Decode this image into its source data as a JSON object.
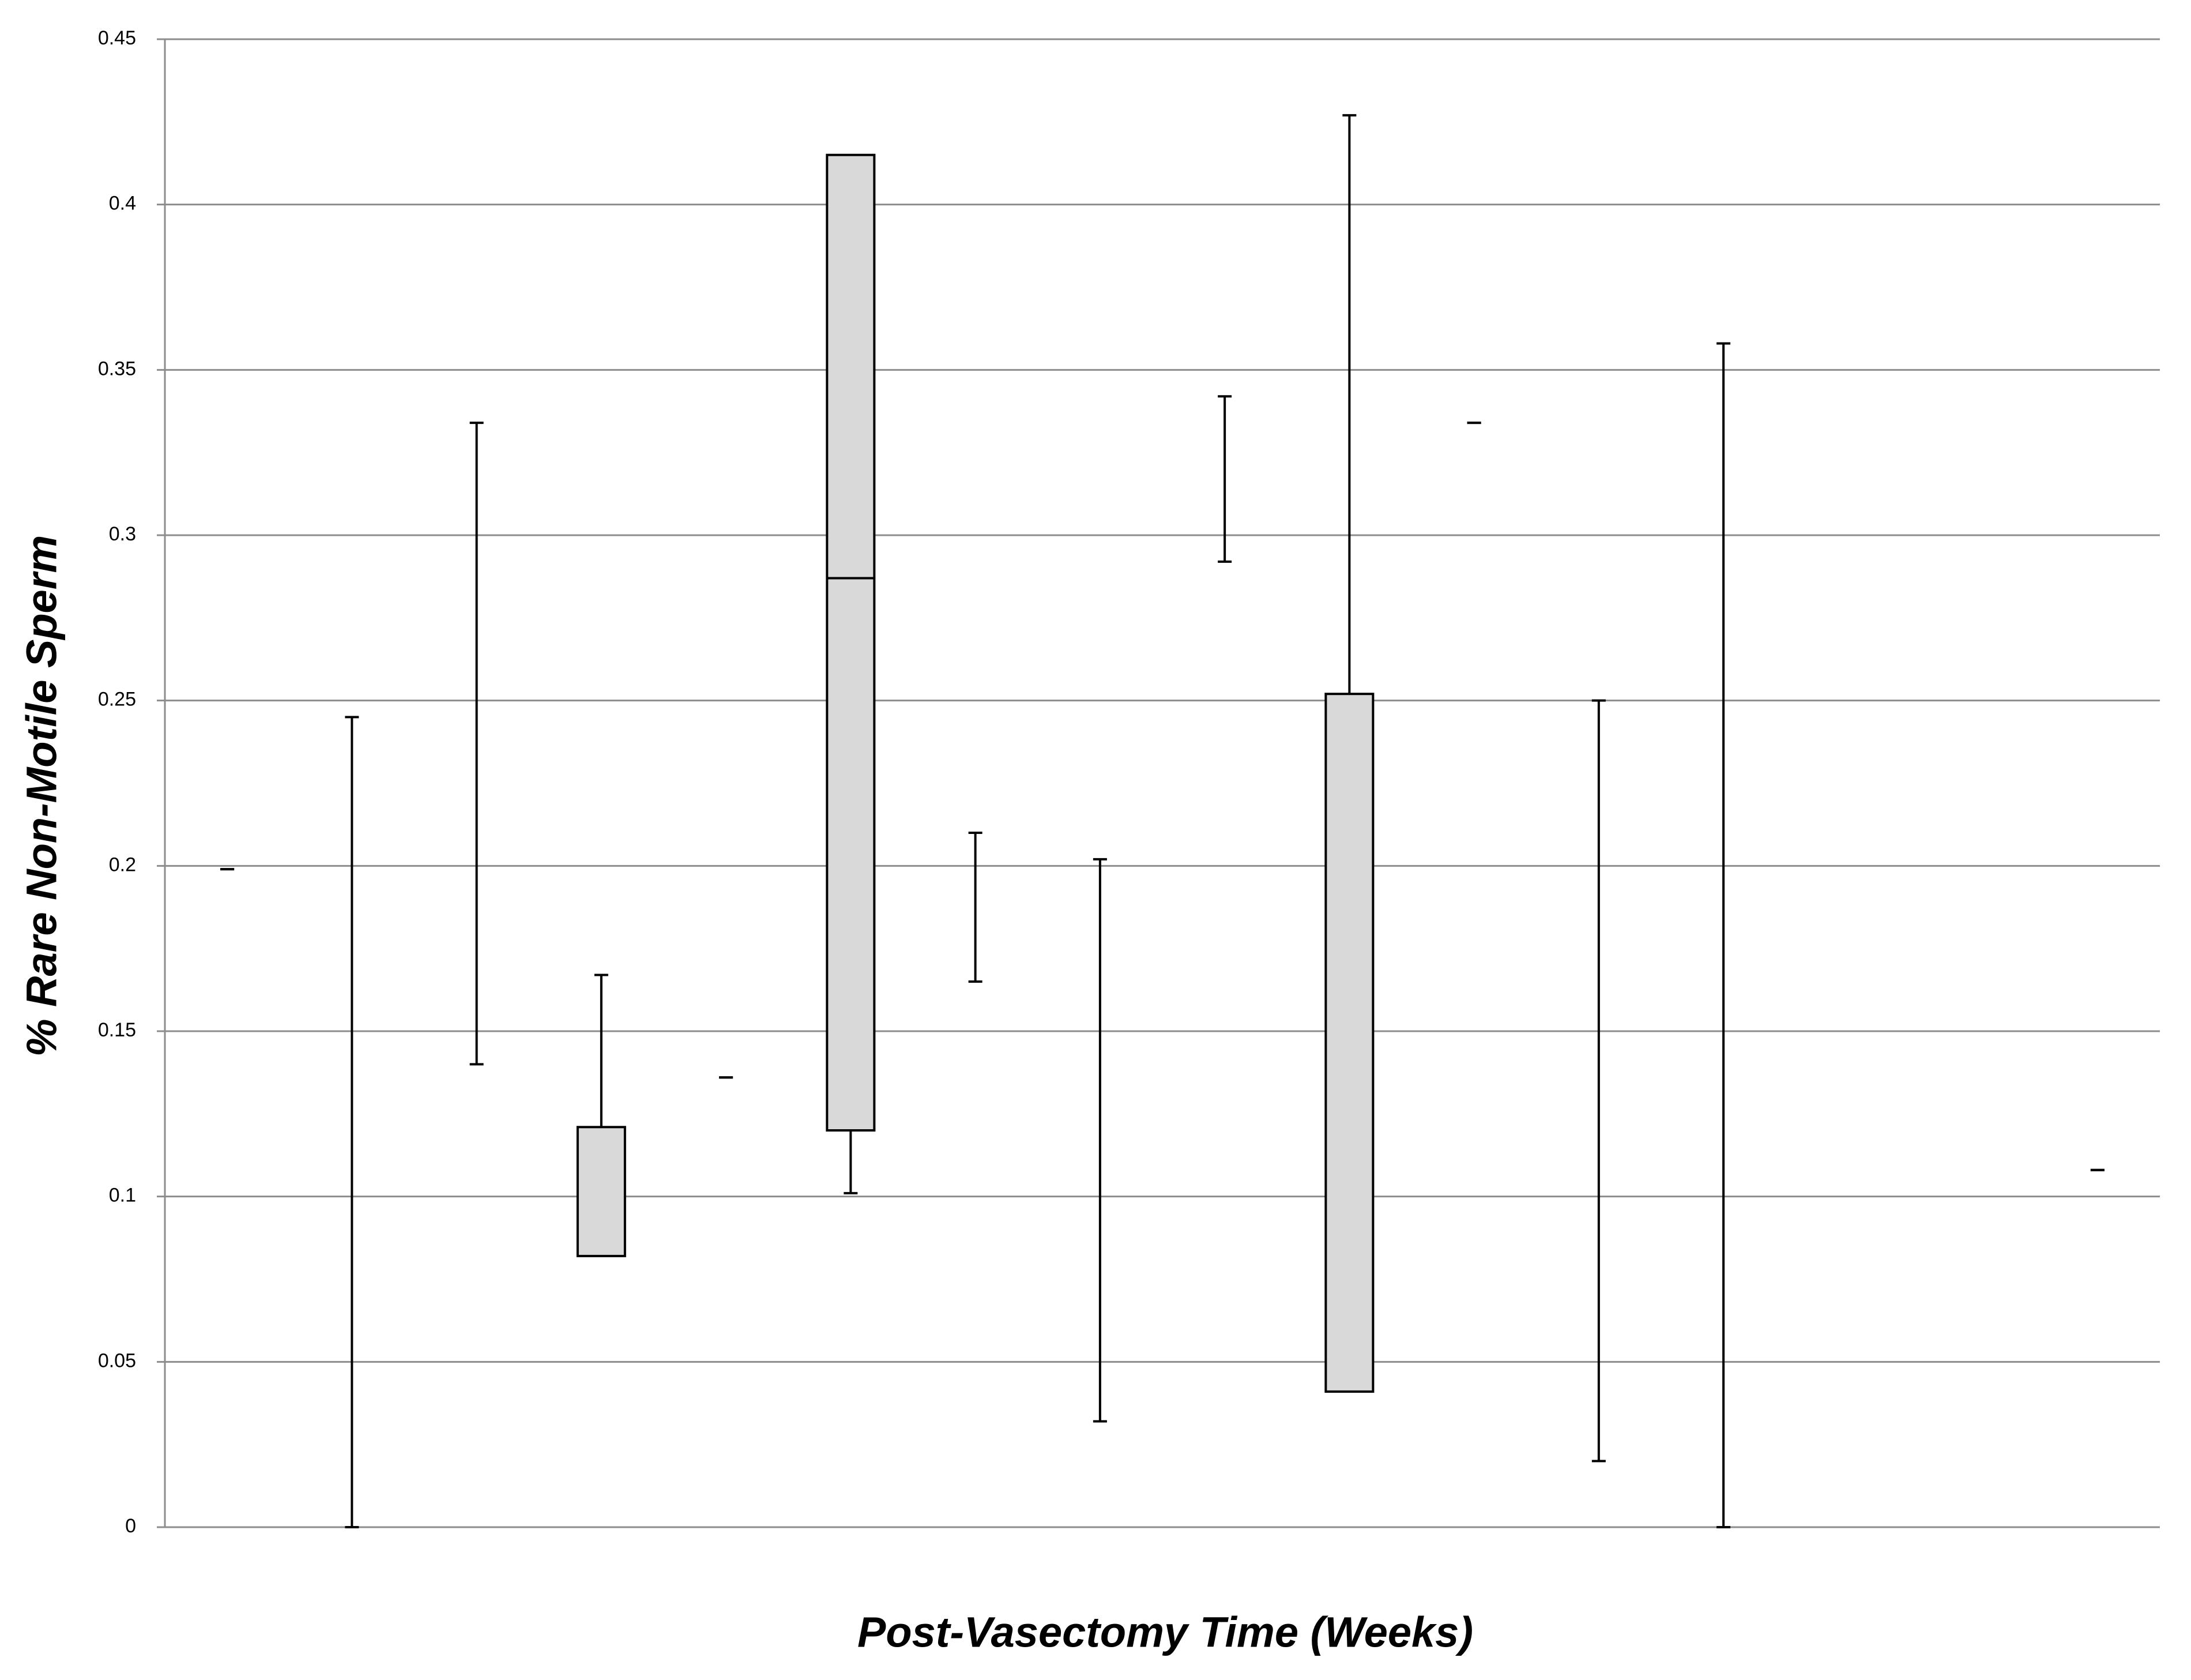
{
  "chart_data": {
    "type": "box",
    "x_label": "Post-Vasectomy Time (Weeks)",
    "y_label": "% Rare Non-Motile Sperm",
    "categories": [
      null,
      null,
      null,
      null,
      null,
      null,
      null,
      null,
      null,
      null,
      null,
      null,
      null,
      null,
      null,
      null
    ],
    "min": [
      0.199,
      0,
      0.14,
      null,
      0.136,
      0.101,
      0.165,
      0.032,
      0.292,
      null,
      0.334,
      0.02,
      0,
      null,
      null,
      0.108
    ],
    "q1": [
      null,
      null,
      null,
      0.082,
      null,
      0.12,
      null,
      null,
      null,
      0.041,
      null,
      null,
      null,
      null,
      null,
      null
    ],
    "median": [
      null,
      null,
      null,
      null,
      null,
      0.287,
      null,
      null,
      null,
      null,
      null,
      null,
      null,
      null,
      null,
      null
    ],
    "q3": [
      null,
      null,
      null,
      0.121,
      null,
      0.415,
      null,
      null,
      null,
      0.252,
      null,
      null,
      null,
      null,
      null,
      null
    ],
    "max": [
      0.199,
      0.245,
      0.334,
      0.167,
      0.136,
      null,
      0.21,
      0.202,
      0.342,
      0.427,
      0.334,
      0.25,
      0.358,
      null,
      null,
      0.108
    ],
    "box_color": "#d9d9d9",
    "ylim": [
      0,
      0.45
    ],
    "yticks": [
      0,
      0.05,
      0.1,
      0.15,
      0.2,
      0.25,
      0.3,
      0.35,
      0.4,
      0.45
    ],
    "grid": true
  }
}
